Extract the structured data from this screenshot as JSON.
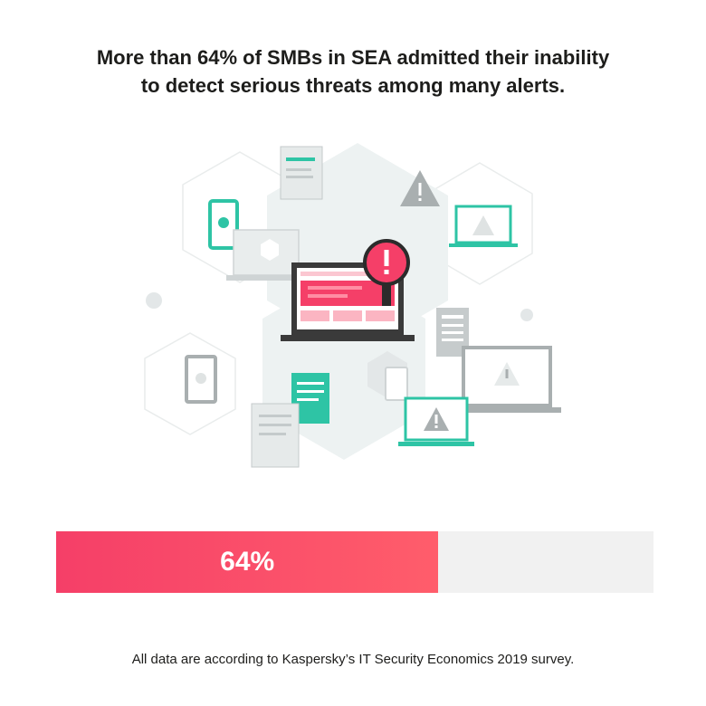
{
  "headline": {
    "line1": "More than 64% of SMBs in SEA admitted their inability",
    "line2": "to detect serious threats among many alerts."
  },
  "stat": {
    "label": "64%",
    "fraction": 0.64
  },
  "footnote": "All data are according to Kaspersky’s IT Security Economics 2019 survey.",
  "colors": {
    "accent_pink": "#f53f68",
    "accent_pink_light": "#ff5d6b",
    "teal": "#2ec4a5",
    "grey": "#a9afb0",
    "track": "#f1f1f1"
  },
  "icons": [
    "document-icon",
    "warning-triangle-icon",
    "smartphone-icon",
    "monitor-icon",
    "laptop-warning-icon",
    "laptop-alert-icon",
    "magnifier-alert-icon",
    "server-icon",
    "tablet-icon",
    "hexagon-icon"
  ]
}
